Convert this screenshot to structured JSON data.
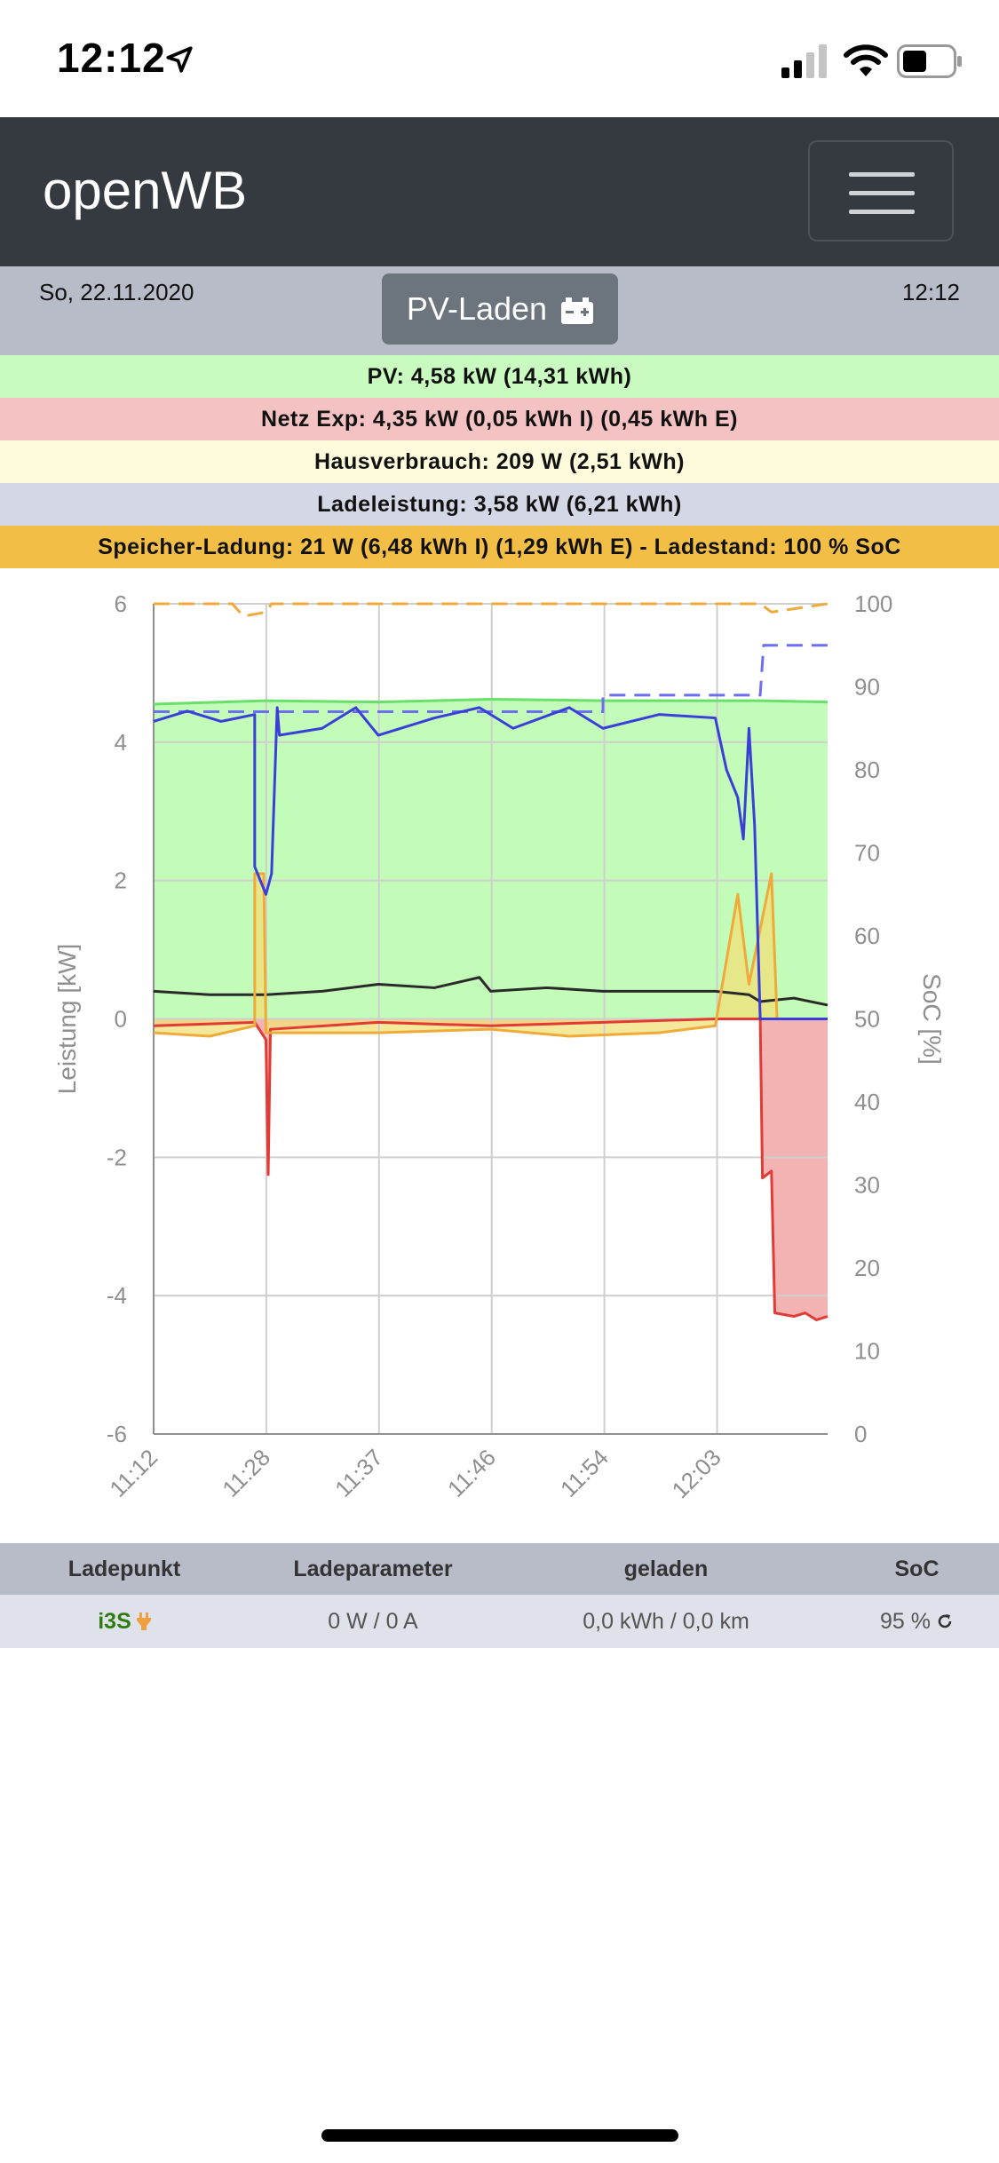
{
  "status_bar": {
    "time": "12:12"
  },
  "app": {
    "brand": "openWB"
  },
  "header": {
    "date": "So, 22.11.2020",
    "time": "12:12",
    "mode_button": "PV-Laden"
  },
  "info_rows": [
    {
      "text": "PV: 4,58 kW (14,31 kWh)",
      "color": "#c9fbc0"
    },
    {
      "text": "Netz Exp: 4,35 kW (0,05 kWh I) (0,45 kWh E)",
      "color": "#f4c2c2"
    },
    {
      "text": "Hausverbrauch: 209 W (2,51 kWh)",
      "color": "#fdfbdc"
    },
    {
      "text": "Ladeleistung: 3,58 kW (6,21 kWh)",
      "color": "#d4d8e6"
    },
    {
      "text": "Speicher-Ladung: 21 W (6,48 kWh I) (1,29 kWh E) - Ladestand: 100 % SoC",
      "color": "#f2be45"
    }
  ],
  "chart_data": {
    "type": "line",
    "ylabel": "Leistung [kW]",
    "y2label": "SoC [%]",
    "ylim": [
      -6,
      6
    ],
    "y2lim": [
      0,
      100
    ],
    "yticks": [
      "6",
      "4",
      "2",
      "0",
      "-2",
      "-4",
      "-6"
    ],
    "y2ticks": [
      "100",
      "90",
      "80",
      "70",
      "60",
      "50",
      "40",
      "30",
      "20",
      "10",
      "0"
    ],
    "xticks": [
      "11:12",
      "11:28",
      "11:37",
      "11:46",
      "11:54",
      "12:03"
    ],
    "x_index_range": [
      0,
      60
    ],
    "grid": true,
    "series": [
      {
        "role": "pv",
        "color": "#68e06a",
        "fill": "#c3fbb8",
        "points": [
          [
            0,
            4.55
          ],
          [
            10,
            4.6
          ],
          [
            20,
            4.58
          ],
          [
            30,
            4.62
          ],
          [
            40,
            4.6
          ],
          [
            50,
            4.6
          ],
          [
            54,
            4.6
          ],
          [
            60,
            4.58
          ]
        ]
      },
      {
        "role": "grid",
        "color": "#e23b35",
        "fill": "#f3b3b3",
        "points": [
          [
            0,
            -0.1
          ],
          [
            9,
            -0.05
          ],
          [
            10,
            -0.3
          ],
          [
            10.2,
            -2.25
          ],
          [
            10.4,
            -0.15
          ],
          [
            20,
            -0.05
          ],
          [
            30,
            -0.1
          ],
          [
            40,
            -0.05
          ],
          [
            50,
            0.0
          ],
          [
            54,
            0.0
          ],
          [
            54.2,
            -2.3
          ],
          [
            55,
            -2.2
          ],
          [
            55.3,
            -4.25
          ],
          [
            57,
            -4.3
          ],
          [
            58,
            -4.25
          ],
          [
            59,
            -4.35
          ],
          [
            60,
            -4.3
          ]
        ]
      },
      {
        "role": "house",
        "color": "#2a2a2a",
        "points": [
          [
            0,
            0.4
          ],
          [
            5,
            0.35
          ],
          [
            10,
            0.35
          ],
          [
            15,
            0.4
          ],
          [
            20,
            0.5
          ],
          [
            25,
            0.45
          ],
          [
            29,
            0.6
          ],
          [
            30,
            0.4
          ],
          [
            35,
            0.45
          ],
          [
            40,
            0.4
          ],
          [
            45,
            0.4
          ],
          [
            50,
            0.4
          ],
          [
            53,
            0.35
          ],
          [
            54,
            0.25
          ],
          [
            57,
            0.3
          ],
          [
            60,
            0.2
          ]
        ]
      },
      {
        "role": "charging",
        "color": "#3a3fd8",
        "points": [
          [
            0,
            4.3
          ],
          [
            3,
            4.45
          ],
          [
            6,
            4.3
          ],
          [
            9,
            4.4
          ],
          [
            9,
            2.2
          ],
          [
            10,
            1.8
          ],
          [
            10.5,
            2.1
          ],
          [
            11,
            4.5
          ],
          [
            11.2,
            4.1
          ],
          [
            15,
            4.2
          ],
          [
            18,
            4.5
          ],
          [
            20,
            4.1
          ],
          [
            25,
            4.35
          ],
          [
            29,
            4.5
          ],
          [
            32,
            4.2
          ],
          [
            37,
            4.5
          ],
          [
            40,
            4.2
          ],
          [
            45,
            4.4
          ],
          [
            50,
            4.35
          ],
          [
            51,
            3.6
          ],
          [
            52,
            3.2
          ],
          [
            52.5,
            2.6
          ],
          [
            53,
            4.2
          ],
          [
            53.5,
            2.8
          ],
          [
            54,
            0.0
          ],
          [
            60,
            0.0
          ]
        ]
      },
      {
        "role": "storage",
        "color": "#f0aa3a",
        "fill": "#f0e07a",
        "points": [
          [
            0,
            -0.2
          ],
          [
            5,
            -0.25
          ],
          [
            9,
            -0.1
          ],
          [
            9,
            2.1
          ],
          [
            9.8,
            2.1
          ],
          [
            10,
            -0.2
          ],
          [
            20,
            -0.2
          ],
          [
            30,
            -0.15
          ],
          [
            37,
            -0.25
          ],
          [
            45,
            -0.2
          ],
          [
            50,
            -0.1
          ],
          [
            52,
            1.8
          ],
          [
            53,
            0.5
          ],
          [
            55,
            2.1
          ],
          [
            55.5,
            0.0
          ],
          [
            60,
            0.0
          ]
        ]
      },
      {
        "role": "soc-battery",
        "color": "#f0aa3a",
        "dashed": true,
        "axis": "y2",
        "points": [
          [
            0,
            100
          ],
          [
            7,
            100
          ],
          [
            8,
            98.5
          ],
          [
            10,
            99
          ],
          [
            10.5,
            100
          ],
          [
            54,
            100
          ],
          [
            55,
            99
          ],
          [
            60,
            100
          ]
        ]
      },
      {
        "role": "soc-ev",
        "color": "#6b6ff0",
        "dashed": true,
        "axis": "y2",
        "points": [
          [
            0,
            87
          ],
          [
            40,
            87
          ],
          [
            40,
            89
          ],
          [
            54,
            89
          ],
          [
            54.3,
            95
          ],
          [
            60,
            95
          ]
        ]
      }
    ]
  },
  "table": {
    "headers": [
      "Ladepunkt",
      "Ladeparameter",
      "geladen",
      "SoC"
    ],
    "row": {
      "name": "i3S",
      "params": "0 W / 0 A",
      "charged": "0,0 kWh / 0,0 km",
      "soc": "95 %"
    }
  }
}
